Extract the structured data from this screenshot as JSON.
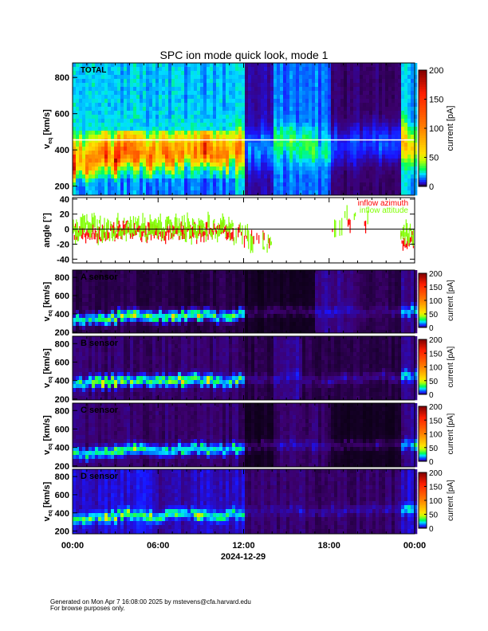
{
  "chart_data": {
    "type": "heatmap",
    "title": "SPC ion mode quick look, mode 1",
    "xlabel": "2024-12-29",
    "x_tick_labels": [
      "00:00",
      "06:00",
      "12:00",
      "18:00",
      "00:00"
    ],
    "x_range_hours": [
      0,
      24
    ],
    "colorbar": {
      "label": "current [pA]",
      "range": [
        0,
        200
      ],
      "ticks": [
        "0",
        "50",
        "100",
        "150",
        "200"
      ]
    },
    "spectrogram_ylabel": "v_eq [km/s]",
    "spectrogram_ylabel_main": "v",
    "spectrogram_ylabel_sub": "eq",
    "spectrogram_ylabel_unit": "[km/s]",
    "panels": [
      {
        "label": "TOTAL",
        "y_range": [
          150,
          880
        ],
        "y_ticks": [
          "200",
          "400",
          "600",
          "800"
        ],
        "reference_line_kms": 455,
        "hourly_peak_speed_kms": [
          330,
          340,
          350,
          380,
          380,
          360,
          370,
          380,
          390,
          380,
          370,
          390,
          400,
          420,
          430,
          440,
          420,
          400,
          420,
          430,
          430,
          440,
          430,
          430
        ],
        "hourly_peak_current_pA": [
          70,
          80,
          90,
          100,
          90,
          80,
          80,
          80,
          80,
          75,
          70,
          65,
          12,
          12,
          18,
          22,
          18,
          14,
          8,
          8,
          8,
          8,
          8,
          40
        ],
        "hourly_background_pA": [
          22,
          22,
          22,
          22,
          22,
          20,
          20,
          20,
          20,
          20,
          20,
          18,
          5,
          5,
          14,
          14,
          14,
          14,
          3,
          3,
          3,
          3,
          3,
          20
        ]
      },
      {
        "label": "A sensor",
        "y_range": [
          190,
          880
        ],
        "y_ticks": [
          "200",
          "400",
          "600",
          "800"
        ],
        "hourly_peak_speed_kms": [
          330,
          340,
          350,
          380,
          380,
          360,
          370,
          380,
          390,
          380,
          370,
          390,
          410,
          420,
          430,
          440,
          420,
          400,
          420,
          430,
          430,
          440,
          430,
          430
        ],
        "hourly_peak_current_pA": [
          25,
          28,
          30,
          35,
          30,
          28,
          28,
          28,
          30,
          28,
          26,
          25,
          2,
          2,
          2,
          2,
          2,
          2,
          2,
          2,
          2,
          2,
          2,
          15
        ],
        "hourly_background_pA": [
          2,
          2,
          2,
          2,
          2,
          2,
          2,
          2,
          2,
          2,
          2,
          2,
          1,
          1,
          1,
          1,
          1,
          4,
          4,
          3,
          2,
          2,
          2,
          4
        ]
      },
      {
        "label": "B sensor",
        "y_range": [
          190,
          880
        ],
        "y_ticks": [
          "200",
          "400",
          "600",
          "800"
        ],
        "hourly_peak_speed_kms": [
          370,
          380,
          390,
          400,
          400,
          390,
          400,
          400,
          410,
          400,
          390,
          400,
          410,
          420,
          430,
          440,
          420,
          400,
          420,
          430,
          430,
          440,
          430,
          450
        ],
        "hourly_peak_current_pA": [
          30,
          32,
          35,
          35,
          30,
          28,
          30,
          30,
          30,
          30,
          28,
          25,
          2,
          2,
          2,
          2,
          2,
          2,
          2,
          2,
          2,
          2,
          2,
          15
        ],
        "hourly_background_pA": [
          3,
          3,
          3,
          3,
          3,
          3,
          3,
          3,
          3,
          3,
          3,
          3,
          2,
          2,
          4,
          4,
          2,
          2,
          2,
          2,
          2,
          2,
          2,
          4
        ]
      },
      {
        "label": "C sensor",
        "y_range": [
          190,
          880
        ],
        "y_ticks": [
          "200",
          "400",
          "600",
          "800"
        ],
        "hourly_peak_speed_kms": [
          330,
          340,
          350,
          380,
          380,
          360,
          370,
          380,
          390,
          380,
          370,
          390,
          410,
          420,
          430,
          440,
          420,
          400,
          420,
          430,
          430,
          440,
          430,
          430
        ],
        "hourly_peak_current_pA": [
          22,
          24,
          26,
          30,
          26,
          24,
          24,
          24,
          26,
          24,
          22,
          22,
          2,
          2,
          2,
          2,
          2,
          2,
          2,
          2,
          2,
          2,
          2,
          15
        ],
        "hourly_background_pA": [
          3,
          3,
          3,
          3,
          3,
          3,
          3,
          3,
          3,
          3,
          3,
          3,
          1,
          1,
          3,
          3,
          3,
          3,
          1,
          1,
          1,
          1,
          1,
          4
        ]
      },
      {
        "label": "D sensor",
        "y_range": [
          170,
          880
        ],
        "y_ticks": [
          "200",
          "400",
          "600",
          "800"
        ],
        "hourly_peak_speed_kms": [
          330,
          340,
          350,
          380,
          380,
          360,
          370,
          380,
          390,
          380,
          370,
          390,
          410,
          420,
          430,
          440,
          420,
          400,
          420,
          430,
          430,
          440,
          430,
          430
        ],
        "hourly_peak_current_pA": [
          22,
          24,
          26,
          30,
          26,
          24,
          24,
          24,
          26,
          24,
          22,
          22,
          2,
          2,
          2,
          2,
          2,
          2,
          2,
          2,
          2,
          2,
          2,
          15
        ],
        "hourly_background_pA": [
          6,
          6,
          6,
          7,
          7,
          6,
          4,
          5,
          6,
          6,
          6,
          6,
          3,
          3,
          3,
          3,
          3,
          3,
          3,
          3,
          3,
          3,
          3,
          6
        ]
      }
    ],
    "angle_panel": {
      "ylabel": "angle [°]",
      "y_range": [
        -45,
        42
      ],
      "y_ticks": [
        "40",
        "20",
        "0",
        "-20",
        "-40"
      ],
      "series": [
        {
          "name": "inflow azimuth",
          "color": "#ff0000",
          "hourly_mean_deg": [
            -5,
            -6,
            -4,
            -3,
            -5,
            -6,
            -4,
            -5,
            -4,
            -3,
            -5,
            -6,
            -10,
            -12,
            null,
            null,
            null,
            null,
            5,
            8,
            2,
            null,
            null,
            -15
          ]
        },
        {
          "name": "inflow attitude",
          "color": "#80ff00",
          "hourly_mean_deg": [
            0,
            2,
            -2,
            3,
            0,
            -3,
            2,
            1,
            0,
            2,
            -1,
            -5,
            -12,
            -15,
            null,
            null,
            null,
            null,
            10,
            12,
            5,
            null,
            null,
            -5
          ]
        }
      ]
    }
  },
  "footer": {
    "line1": "Generated on Mon Apr  7 16:08:00 2025 by mstevens@cfa.harvard.edu",
    "line2": "For browse purposes only."
  }
}
